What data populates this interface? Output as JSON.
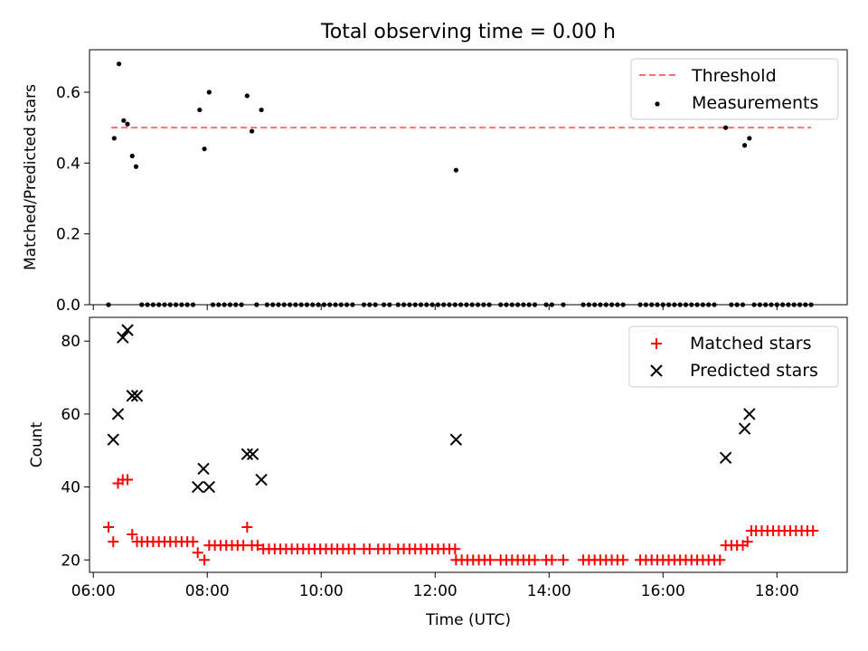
{
  "figure": {
    "title": "Total observing time = 0.00 h",
    "xlabel": "Time (UTC)"
  },
  "colors": {
    "threshold": "#ff7070",
    "measurements": "#000000",
    "matched": "#ff0000",
    "predicted": "#000000"
  },
  "chart_data": [
    {
      "type": "scatter",
      "panel": "top",
      "ylabel": "Matched/Predicted stars",
      "ylim": [
        0,
        0.72
      ],
      "yticks": [
        0.0,
        0.2,
        0.4,
        0.6
      ],
      "ytick_labels": [
        "0.0",
        "0.2",
        "0.4",
        "0.6"
      ],
      "xlim": [
        "05:56",
        "19:14"
      ],
      "legend_position": "top-right",
      "threshold": {
        "name": "Threshold",
        "y": 0.5,
        "x_range": [
          "06:19",
          "18:36"
        ],
        "style": "dashed"
      },
      "series": [
        {
          "name": "Measurements",
          "marker": "dot",
          "points": [
            [
              "06:16",
              0.0
            ],
            [
              "06:22",
              0.47
            ],
            [
              "06:27",
              0.68
            ],
            [
              "06:32",
              0.52
            ],
            [
              "06:36",
              0.51
            ],
            [
              "06:41",
              0.42
            ],
            [
              "06:45",
              0.39
            ],
            [
              "06:51",
              0.0
            ],
            [
              "06:57",
              0.0
            ],
            [
              "07:03",
              0.0
            ],
            [
              "07:09",
              0.0
            ],
            [
              "07:15",
              0.0
            ],
            [
              "07:21",
              0.0
            ],
            [
              "07:27",
              0.0
            ],
            [
              "07:33",
              0.0
            ],
            [
              "07:39",
              0.0
            ],
            [
              "07:45",
              0.0
            ],
            [
              "07:52",
              0.55
            ],
            [
              "07:57",
              0.44
            ],
            [
              "08:02",
              0.6
            ],
            [
              "08:06",
              0.0
            ],
            [
              "08:12",
              0.0
            ],
            [
              "08:18",
              0.0
            ],
            [
              "08:24",
              0.0
            ],
            [
              "08:30",
              0.0
            ],
            [
              "08:36",
              0.0
            ],
            [
              "08:42",
              0.59
            ],
            [
              "08:47",
              0.49
            ],
            [
              "08:52",
              0.0
            ],
            [
              "08:57",
              0.55
            ],
            [
              "09:03",
              0.0
            ],
            [
              "09:09",
              0.0
            ],
            [
              "09:15",
              0.0
            ],
            [
              "09:21",
              0.0
            ],
            [
              "09:27",
              0.0
            ],
            [
              "09:33",
              0.0
            ],
            [
              "09:39",
              0.0
            ],
            [
              "09:45",
              0.0
            ],
            [
              "09:51",
              0.0
            ],
            [
              "09:57",
              0.0
            ],
            [
              "10:03",
              0.0
            ],
            [
              "10:09",
              0.0
            ],
            [
              "10:15",
              0.0
            ],
            [
              "10:21",
              0.0
            ],
            [
              "10:27",
              0.0
            ],
            [
              "10:33",
              0.0
            ],
            [
              "10:45",
              0.0
            ],
            [
              "10:51",
              0.0
            ],
            [
              "10:57",
              0.0
            ],
            [
              "11:06",
              0.0
            ],
            [
              "11:12",
              0.0
            ],
            [
              "11:21",
              0.0
            ],
            [
              "11:27",
              0.0
            ],
            [
              "11:33",
              0.0
            ],
            [
              "11:39",
              0.0
            ],
            [
              "11:45",
              0.0
            ],
            [
              "11:51",
              0.0
            ],
            [
              "11:57",
              0.0
            ],
            [
              "12:03",
              0.0
            ],
            [
              "12:09",
              0.0
            ],
            [
              "12:15",
              0.0
            ],
            [
              "12:21",
              0.0
            ],
            [
              "12:22",
              0.38
            ],
            [
              "12:27",
              0.0
            ],
            [
              "12:33",
              0.0
            ],
            [
              "12:39",
              0.0
            ],
            [
              "12:45",
              0.0
            ],
            [
              "12:51",
              0.0
            ],
            [
              "12:57",
              0.0
            ],
            [
              "13:09",
              0.0
            ],
            [
              "13:15",
              0.0
            ],
            [
              "13:21",
              0.0
            ],
            [
              "13:27",
              0.0
            ],
            [
              "13:33",
              0.0
            ],
            [
              "13:39",
              0.0
            ],
            [
              "13:45",
              0.0
            ],
            [
              "13:57",
              0.0
            ],
            [
              "14:03",
              0.0
            ],
            [
              "14:15",
              0.0
            ],
            [
              "14:36",
              0.0
            ],
            [
              "14:42",
              0.0
            ],
            [
              "14:48",
              0.0
            ],
            [
              "14:54",
              0.0
            ],
            [
              "15:00",
              0.0
            ],
            [
              "15:06",
              0.0
            ],
            [
              "15:12",
              0.0
            ],
            [
              "15:18",
              0.0
            ],
            [
              "15:36",
              0.0
            ],
            [
              "15:42",
              0.0
            ],
            [
              "15:48",
              0.0
            ],
            [
              "15:54",
              0.0
            ],
            [
              "16:00",
              0.0
            ],
            [
              "16:06",
              0.0
            ],
            [
              "16:12",
              0.0
            ],
            [
              "16:18",
              0.0
            ],
            [
              "16:24",
              0.0
            ],
            [
              "16:30",
              0.0
            ],
            [
              "16:36",
              0.0
            ],
            [
              "16:42",
              0.0
            ],
            [
              "16:48",
              0.0
            ],
            [
              "16:54",
              0.0
            ],
            [
              "17:06",
              0.5
            ],
            [
              "17:12",
              0.0
            ],
            [
              "17:18",
              0.0
            ],
            [
              "17:24",
              0.0
            ],
            [
              "17:26",
              0.45
            ],
            [
              "17:31",
              0.47
            ],
            [
              "17:36",
              0.0
            ],
            [
              "17:42",
              0.0
            ],
            [
              "17:48",
              0.0
            ],
            [
              "17:54",
              0.0
            ],
            [
              "18:00",
              0.0
            ],
            [
              "18:06",
              0.0
            ],
            [
              "18:12",
              0.0
            ],
            [
              "18:18",
              0.0
            ],
            [
              "18:24",
              0.0
            ],
            [
              "18:30",
              0.0
            ],
            [
              "18:36",
              0.0
            ]
          ]
        }
      ]
    },
    {
      "type": "scatter",
      "panel": "bottom",
      "ylabel": "Count",
      "ylim": [
        16.6,
        86.5
      ],
      "yticks": [
        20,
        40,
        60,
        80
      ],
      "ytick_labels": [
        "20",
        "40",
        "60",
        "80"
      ],
      "xlim": [
        "05:56",
        "19:14"
      ],
      "xticks": [
        "06:00",
        "08:00",
        "10:00",
        "12:00",
        "14:00",
        "16:00",
        "18:00"
      ],
      "xtick_labels": [
        "06:00",
        "08:00",
        "10:00",
        "12:00",
        "14:00",
        "16:00",
        "18:00"
      ],
      "legend_position": "top-right",
      "series": [
        {
          "name": "Matched stars",
          "marker": "plus",
          "points": [
            [
              "06:16",
              29
            ],
            [
              "06:21",
              25
            ],
            [
              "06:26",
              41
            ],
            [
              "06:31",
              42
            ],
            [
              "06:36",
              42
            ],
            [
              "06:41",
              27
            ],
            [
              "06:46",
              25
            ],
            [
              "06:51",
              25
            ],
            [
              "06:57",
              25
            ],
            [
              "07:03",
              25
            ],
            [
              "07:09",
              25
            ],
            [
              "07:15",
              25
            ],
            [
              "07:21",
              25
            ],
            [
              "07:27",
              25
            ],
            [
              "07:33",
              25
            ],
            [
              "07:39",
              25
            ],
            [
              "07:45",
              25
            ],
            [
              "07:50",
              22
            ],
            [
              "07:57",
              20
            ],
            [
              "08:02",
              24
            ],
            [
              "08:08",
              24
            ],
            [
              "08:14",
              24
            ],
            [
              "08:20",
              24
            ],
            [
              "08:26",
              24
            ],
            [
              "08:32",
              24
            ],
            [
              "08:38",
              24
            ],
            [
              "08:42",
              29
            ],
            [
              "08:47",
              24
            ],
            [
              "08:53",
              24
            ],
            [
              "08:59",
              23
            ],
            [
              "09:05",
              23
            ],
            [
              "09:11",
              23
            ],
            [
              "09:17",
              23
            ],
            [
              "09:23",
              23
            ],
            [
              "09:29",
              23
            ],
            [
              "09:35",
              23
            ],
            [
              "09:41",
              23
            ],
            [
              "09:47",
              23
            ],
            [
              "09:53",
              23
            ],
            [
              "09:59",
              23
            ],
            [
              "10:05",
              23
            ],
            [
              "10:11",
              23
            ],
            [
              "10:17",
              23
            ],
            [
              "10:23",
              23
            ],
            [
              "10:29",
              23
            ],
            [
              "10:35",
              23
            ],
            [
              "10:45",
              23
            ],
            [
              "10:51",
              23
            ],
            [
              "11:00",
              23
            ],
            [
              "11:06",
              23
            ],
            [
              "11:12",
              23
            ],
            [
              "11:21",
              23
            ],
            [
              "11:27",
              23
            ],
            [
              "11:33",
              23
            ],
            [
              "11:39",
              23
            ],
            [
              "11:45",
              23
            ],
            [
              "11:51",
              23
            ],
            [
              "11:57",
              23
            ],
            [
              "12:03",
              23
            ],
            [
              "12:09",
              23
            ],
            [
              "12:15",
              23
            ],
            [
              "12:21",
              23
            ],
            [
              "12:22",
              20
            ],
            [
              "12:28",
              20
            ],
            [
              "12:34",
              20
            ],
            [
              "12:40",
              20
            ],
            [
              "12:46",
              20
            ],
            [
              "12:52",
              20
            ],
            [
              "12:58",
              20
            ],
            [
              "13:09",
              20
            ],
            [
              "13:15",
              20
            ],
            [
              "13:21",
              20
            ],
            [
              "13:27",
              20
            ],
            [
              "13:33",
              20
            ],
            [
              "13:39",
              20
            ],
            [
              "13:45",
              20
            ],
            [
              "13:57",
              20
            ],
            [
              "14:03",
              20
            ],
            [
              "14:15",
              20
            ],
            [
              "14:36",
              20
            ],
            [
              "14:42",
              20
            ],
            [
              "14:48",
              20
            ],
            [
              "14:54",
              20
            ],
            [
              "15:00",
              20
            ],
            [
              "15:06",
              20
            ],
            [
              "15:12",
              20
            ],
            [
              "15:18",
              20
            ],
            [
              "15:36",
              20
            ],
            [
              "15:42",
              20
            ],
            [
              "15:48",
              20
            ],
            [
              "15:54",
              20
            ],
            [
              "16:00",
              20
            ],
            [
              "16:06",
              20
            ],
            [
              "16:12",
              20
            ],
            [
              "16:18",
              20
            ],
            [
              "16:24",
              20
            ],
            [
              "16:30",
              20
            ],
            [
              "16:36",
              20
            ],
            [
              "16:42",
              20
            ],
            [
              "16:48",
              20
            ],
            [
              "16:54",
              20
            ],
            [
              "17:00",
              20
            ],
            [
              "17:06",
              24
            ],
            [
              "17:12",
              24
            ],
            [
              "17:18",
              24
            ],
            [
              "17:24",
              24
            ],
            [
              "17:29",
              25
            ],
            [
              "17:33",
              28
            ],
            [
              "17:38",
              28
            ],
            [
              "17:44",
              28
            ],
            [
              "17:50",
              28
            ],
            [
              "17:56",
              28
            ],
            [
              "18:02",
              28
            ],
            [
              "18:08",
              28
            ],
            [
              "18:14",
              28
            ],
            [
              "18:20",
              28
            ],
            [
              "18:26",
              28
            ],
            [
              "18:32",
              28
            ],
            [
              "18:38",
              28
            ]
          ]
        },
        {
          "name": "Predicted stars",
          "marker": "x",
          "points": [
            [
              "06:21",
              53
            ],
            [
              "06:26",
              60
            ],
            [
              "06:31",
              81
            ],
            [
              "06:36",
              83
            ],
            [
              "06:41",
              65
            ],
            [
              "06:46",
              65
            ],
            [
              "07:50",
              40
            ],
            [
              "07:56",
              45
            ],
            [
              "08:02",
              40
            ],
            [
              "08:42",
              49
            ],
            [
              "08:48",
              49
            ],
            [
              "08:57",
              42
            ],
            [
              "12:22",
              53
            ],
            [
              "17:06",
              48
            ],
            [
              "17:26",
              56
            ],
            [
              "17:31",
              60
            ]
          ]
        }
      ]
    }
  ]
}
